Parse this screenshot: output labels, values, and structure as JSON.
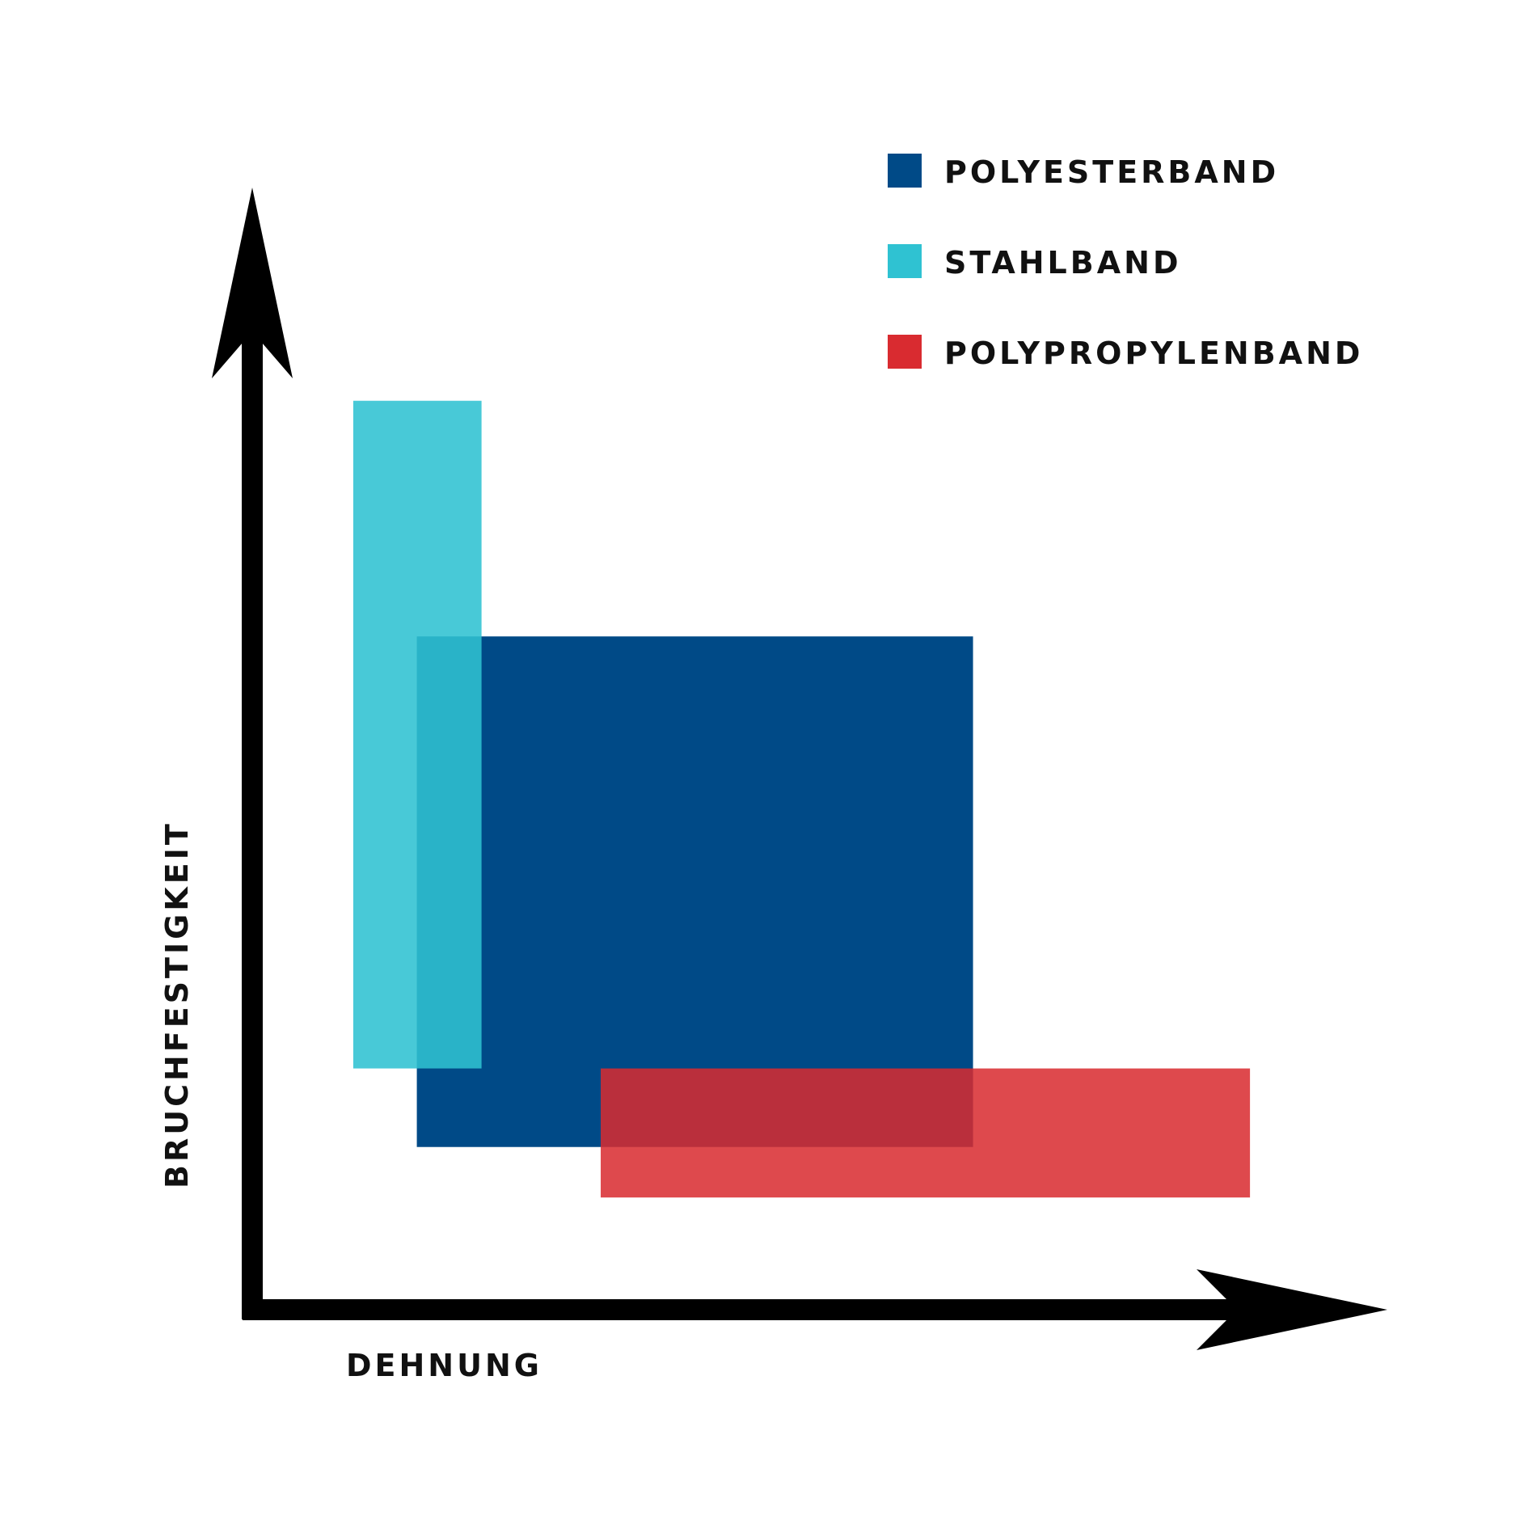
{
  "chart_data": {
    "type": "area",
    "title": "",
    "xlabel": "DEHNUNG",
    "ylabel": "BRUCHFESTIGKEIT",
    "xlim": [
      0,
      100
    ],
    "ylim": [
      0,
      100
    ],
    "grid": false,
    "ticks": false,
    "legend_position": "top-right",
    "series": [
      {
        "name": "POLYESTERBAND",
        "color": "#004A87",
        "x_range": [
          14.5,
          63.5
        ],
        "y_range": [
          14.5,
          60
        ]
      },
      {
        "name": "STAHLBAND",
        "color": "#2FC2D2",
        "x_range": [
          8.9,
          20.2
        ],
        "y_range": [
          21.5,
          81
        ]
      },
      {
        "name": "POLYPROPYLENBAND",
        "color": "#D92B30",
        "x_range": [
          30.7,
          87.9
        ],
        "y_range": [
          10,
          21.5
        ]
      }
    ]
  }
}
